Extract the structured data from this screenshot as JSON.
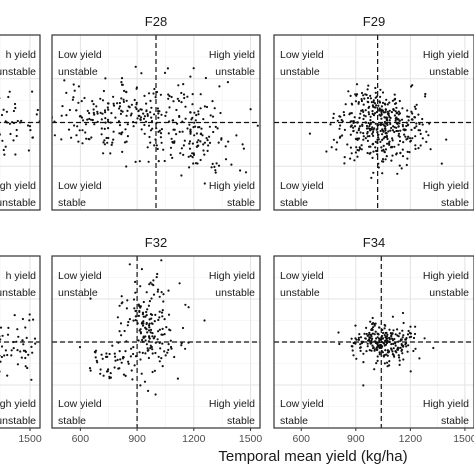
{
  "chart_data": {
    "type": "scatter",
    "xlabel": "Temporal mean yield (kg/ha)",
    "x_ticks": [
      600,
      900,
      1200,
      1500
    ],
    "x_tick_labels": [
      "600",
      "900",
      "1200",
      "1500"
    ],
    "xlim": [
      450,
      1550
    ],
    "grid": true,
    "quadrant_labels": {
      "top_left": [
        "Low yield",
        "unstable"
      ],
      "top_right": [
        "High yield",
        "unstable"
      ],
      "bottom_left": [
        "Low yield",
        "stable"
      ],
      "bottom_right": [
        "High yield",
        "stable"
      ]
    },
    "partial_labels": {
      "top_right": [
        "h yield",
        "unstable"
      ],
      "bottom_right": [
        "High yield",
        "unstable"
      ]
    },
    "panels": [
      {
        "id": "F27",
        "title": "",
        "mean_x": 1300,
        "cloud": [
          {
            "cx": 1340,
            "cy": 0.0,
            "sx": 140,
            "sy": 0.16,
            "n": 90
          }
        ]
      },
      {
        "id": "F28",
        "title": "F28",
        "mean_x": 1000,
        "cloud": [
          {
            "cx": 800,
            "cy": 0.08,
            "sx": 260,
            "sy": 0.22,
            "n": 260
          },
          {
            "cx": 1200,
            "cy": -0.2,
            "sx": 110,
            "sy": 0.22,
            "n": 120
          }
        ]
      },
      {
        "id": "F29",
        "title": "F29",
        "mean_x": 1020,
        "cloud": [
          {
            "cx": 1040,
            "cy": -0.05,
            "sx": 120,
            "sy": 0.2,
            "n": 420
          }
        ]
      },
      {
        "id": "F31",
        "title": "",
        "mean_x": 1300,
        "cloud": [
          {
            "cx": 1340,
            "cy": -0.05,
            "sx": 140,
            "sy": 0.2,
            "n": 110
          }
        ]
      },
      {
        "id": "F32",
        "title": "F32",
        "mean_x": 900,
        "cloud": [
          {
            "cx": 960,
            "cy": 0.15,
            "sx": 80,
            "sy": 0.3,
            "n": 180
          },
          {
            "cx": 760,
            "cy": -0.2,
            "sx": 80,
            "sy": 0.12,
            "n": 50
          }
        ]
      },
      {
        "id": "F34",
        "title": "F34",
        "mean_x": 1040,
        "cloud": [
          {
            "cx": 1050,
            "cy": 0.0,
            "sx": 85,
            "sy": 0.12,
            "n": 260
          }
        ]
      }
    ]
  }
}
